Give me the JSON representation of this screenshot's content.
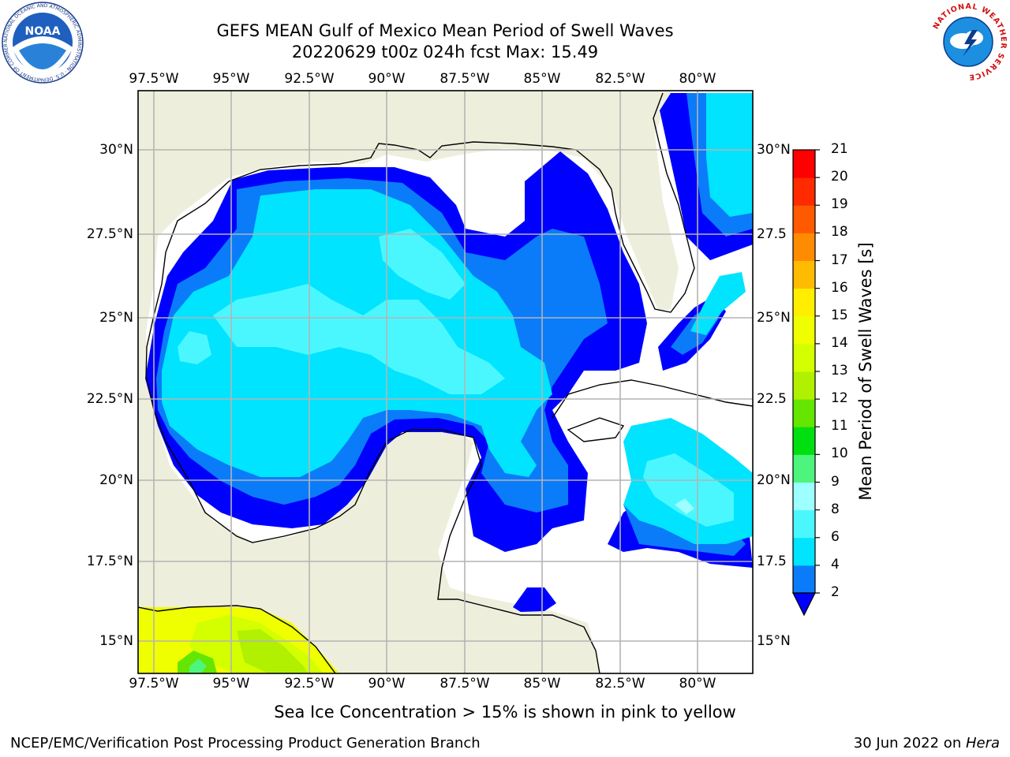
{
  "title": {
    "line1": "GEFS MEAN Gulf of Mexico Mean Period of Swell Waves",
    "line2": "20220629 t00z 024h fcst   Max: 15.49"
  },
  "map": {
    "lon_ticks": [
      "97.5°W",
      "95°W",
      "92.5°W",
      "90°W",
      "87.5°W",
      "85°W",
      "82.5°W",
      "80°W"
    ],
    "lat_ticks_left": [
      "30°N",
      "27.5°N",
      "25°N",
      "22.5°N",
      "20°N",
      "17.5°N",
      "15°N"
    ],
    "lat_ticks_right": [
      "30°N",
      "27.5",
      "25°N",
      "22.5",
      "20°N",
      "17.5",
      "15°N"
    ],
    "land_color": "#eeeedc",
    "grid_color": "#b4b4b4"
  },
  "colorbar": {
    "label": "Mean Period of Swell Waves [s]",
    "levels": [
      "2",
      "4",
      "6",
      "8",
      "9",
      "10",
      "11",
      "12",
      "13",
      "14",
      "15",
      "16",
      "17",
      "18",
      "19",
      "20",
      "21"
    ],
    "colors": [
      "#0000ff",
      "#0a7cfa",
      "#00e4ff",
      "#4bf7ff",
      "#9dffff",
      "#4df57c",
      "#00e010",
      "#64e600",
      "#b0f000",
      "#d4ff00",
      "#f0ff00",
      "#ffee00",
      "#ffbb00",
      "#ff8c00",
      "#ff5a00",
      "#ff2a00",
      "#ff0000"
    ],
    "under_color": "#0000ff"
  },
  "chart_data": {
    "type": "heatmap",
    "title": "GEFS MEAN Gulf of Mexico Mean Period of Swell Waves",
    "subtitle": "20220629 t00z 024h fcst   Max: 15.49",
    "variable": "Mean Period of Swell Waves [s]",
    "max": 15.49,
    "xlim": [
      -98.3,
      -78.5
    ],
    "ylim": [
      14.0,
      31.5
    ],
    "lon_ticks": [
      -97.5,
      -95,
      -92.5,
      -90,
      -87.5,
      -85,
      -82.5,
      -80
    ],
    "lat_ticks": [
      15,
      17.5,
      20,
      22.5,
      25,
      27.5,
      30
    ],
    "contour_levels": [
      2,
      4,
      6,
      8,
      9,
      10,
      11,
      12,
      13,
      14,
      15,
      16,
      17,
      18,
      19,
      20,
      21
    ],
    "colorbar_extend": "min",
    "grid": true
  },
  "notes": {
    "sea_ice": "Sea Ice Concentration > 15% is shown in pink to yellow"
  },
  "footer": {
    "left": "NCEP/EMC/Verification Post Processing Product Generation Branch",
    "date": "30 Jun 2022 on ",
    "host": "Hera"
  },
  "logos": {
    "noaa_text": "NOAA",
    "noaa_ring": "NATIONAL OCEANIC AND ATMOSPHERIC ADMINISTRATION · U.S. DEPARTMENT OF COMMERCE",
    "nws_ring": "NATIONAL WEATHER SERVICE"
  }
}
